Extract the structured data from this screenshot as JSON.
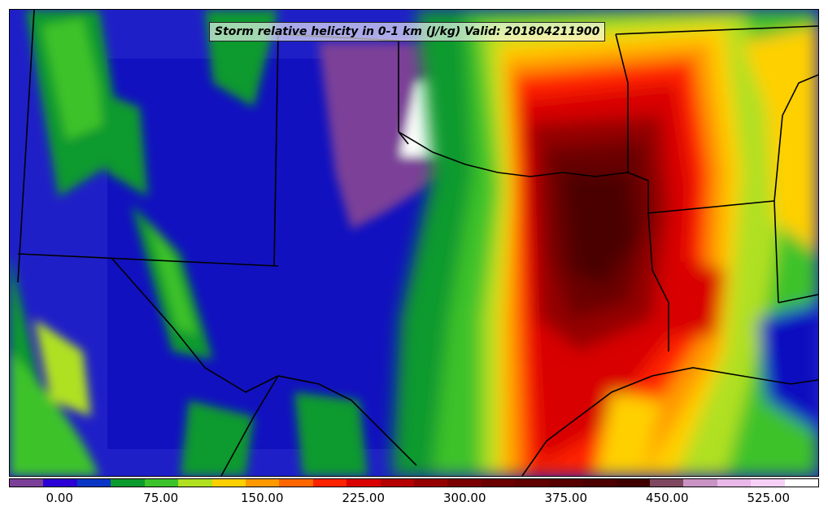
{
  "title": "Storm relative helicity in 0-1 km (J/kg) Valid: 201804211900",
  "map": {
    "variable": "Storm relative helicity 0-1 km",
    "units": "J/kg",
    "valid_time": "201804211900"
  },
  "colorbar": {
    "tick_labels": [
      "0.00",
      "75.00",
      "150.00",
      "225.00",
      "300.00",
      "375.00",
      "450.00",
      "525.00"
    ],
    "tick_values": [
      0,
      75,
      150,
      225,
      300,
      375,
      450,
      525
    ],
    "range": [
      -37.5,
      562.5
    ],
    "interval": 25,
    "colors": [
      "#7b3f98",
      "#2b00d6",
      "#0a36c6",
      "#0a9a2e",
      "#3cc22a",
      "#b0e020",
      "#ffd000",
      "#ff9900",
      "#ff6600",
      "#ff2200",
      "#d80000",
      "#b40000",
      "#940000",
      "#7a0000",
      "#6a0000",
      "#600000",
      "#560000",
      "#4c0000",
      "#3f0000",
      "#7f4860",
      "#c993c4",
      "#e8b8e8",
      "#f7d0f7",
      "#ffffff"
    ]
  }
}
